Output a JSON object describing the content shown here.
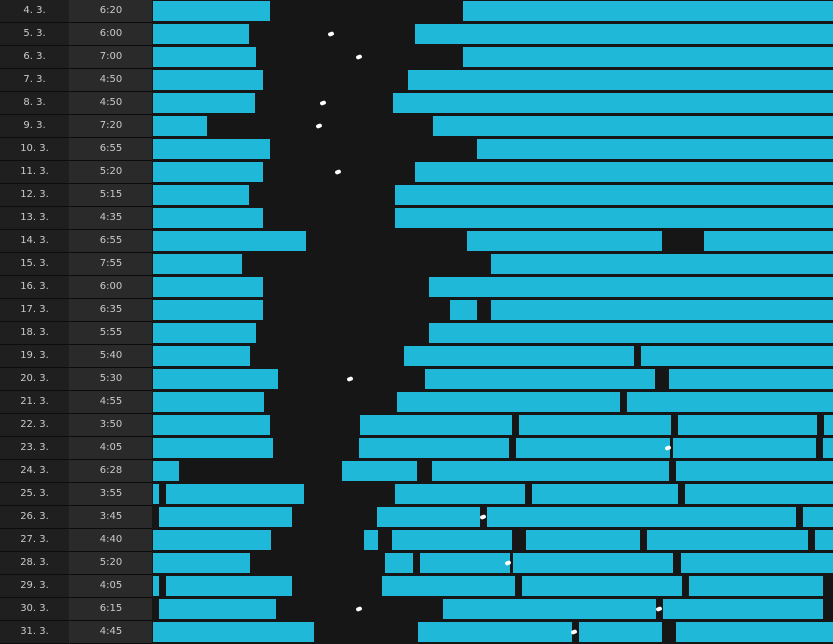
{
  "colors": {
    "background": "#161616",
    "sleep": "#1fb8d9",
    "marker": "#ffffff"
  },
  "rows": [
    {
      "date": "4. 3.",
      "total": "6:20",
      "segments": [
        [
          0,
          117
        ],
        [
          310,
          680
        ]
      ],
      "marks": []
    },
    {
      "date": "5. 3.",
      "total": "6:00",
      "segments": [
        [
          0,
          96
        ],
        [
          262,
          680
        ]
      ],
      "marks": [
        178
      ]
    },
    {
      "date": "6. 3.",
      "total": "7:00",
      "segments": [
        [
          0,
          103
        ],
        [
          310,
          680
        ]
      ],
      "marks": [
        206
      ]
    },
    {
      "date": "7. 3.",
      "total": "4:50",
      "segments": [
        [
          0,
          110
        ],
        [
          255,
          680
        ]
      ],
      "marks": []
    },
    {
      "date": "8. 3.",
      "total": "4:50",
      "segments": [
        [
          0,
          102
        ],
        [
          240,
          680
        ]
      ],
      "marks": [
        170
      ]
    },
    {
      "date": "9. 3.",
      "total": "7:20",
      "segments": [
        [
          0,
          54
        ],
        [
          280,
          680
        ]
      ],
      "marks": [
        166
      ]
    },
    {
      "date": "10. 3.",
      "total": "6:55",
      "segments": [
        [
          0,
          117
        ],
        [
          324,
          680
        ]
      ],
      "marks": []
    },
    {
      "date": "11. 3.",
      "total": "5:20",
      "segments": [
        [
          0,
          110
        ],
        [
          262,
          680
        ]
      ],
      "marks": [
        185
      ]
    },
    {
      "date": "12. 3.",
      "total": "5:15",
      "segments": [
        [
          0,
          96
        ],
        [
          242,
          680
        ]
      ],
      "marks": []
    },
    {
      "date": "13. 3.",
      "total": "4:35",
      "segments": [
        [
          0,
          110
        ],
        [
          242,
          680
        ]
      ],
      "marks": []
    },
    {
      "date": "14. 3.",
      "total": "6:55",
      "segments": [
        [
          0,
          153
        ],
        [
          314,
          509
        ],
        [
          551,
          680
        ]
      ],
      "marks": []
    },
    {
      "date": "15. 3.",
      "total": "7:55",
      "segments": [
        [
          0,
          89
        ],
        [
          338,
          680
        ]
      ],
      "marks": []
    },
    {
      "date": "16. 3.",
      "total": "6:00",
      "segments": [
        [
          0,
          110
        ],
        [
          276,
          680
        ]
      ],
      "marks": []
    },
    {
      "date": "17. 3.",
      "total": "6:35",
      "segments": [
        [
          0,
          110
        ],
        [
          297,
          324
        ],
        [
          338,
          680
        ]
      ],
      "marks": []
    },
    {
      "date": "18. 3.",
      "total": "5:55",
      "segments": [
        [
          0,
          103
        ],
        [
          276,
          680
        ]
      ],
      "marks": []
    },
    {
      "date": "19. 3.",
      "total": "5:40",
      "segments": [
        [
          0,
          97
        ],
        [
          251,
          481
        ],
        [
          488,
          680
        ]
      ],
      "marks": []
    },
    {
      "date": "20. 3.",
      "total": "5:30",
      "segments": [
        [
          0,
          125
        ],
        [
          272,
          502
        ],
        [
          516,
          680
        ]
      ],
      "marks": [
        197
      ]
    },
    {
      "date": "21. 3.",
      "total": "4:55",
      "segments": [
        [
          0,
          111
        ],
        [
          244,
          467
        ],
        [
          474,
          680
        ]
      ],
      "marks": []
    },
    {
      "date": "22. 3.",
      "total": "3:50",
      "segments": [
        [
          0,
          117
        ],
        [
          207,
          359
        ],
        [
          366,
          518
        ],
        [
          525,
          664
        ],
        [
          671,
          680
        ]
      ],
      "marks": []
    },
    {
      "date": "23. 3.",
      "total": "4:05",
      "segments": [
        [
          0,
          120
        ],
        [
          206,
          356
        ],
        [
          363,
          517
        ],
        [
          520,
          663
        ],
        [
          670,
          680
        ]
      ],
      "marks": [
        515
      ]
    },
    {
      "date": "24. 3.",
      "total": "6:28",
      "segments": [
        [
          0,
          26
        ],
        [
          189,
          264
        ],
        [
          279,
          516
        ],
        [
          523,
          680
        ]
      ],
      "marks": []
    },
    {
      "date": "25. 3.",
      "total": "3:55",
      "segments": [
        [
          0,
          6
        ],
        [
          13,
          151
        ],
        [
          242,
          372
        ],
        [
          379,
          525
        ],
        [
          532,
          680
        ]
      ],
      "marks": []
    },
    {
      "date": "26. 3.",
      "total": "3:45",
      "segments": [
        [
          6,
          139
        ],
        [
          224,
          327
        ],
        [
          334,
          643
        ],
        [
          650,
          680
        ]
      ],
      "marks": [
        330
      ]
    },
    {
      "date": "27. 3.",
      "total": "4:40",
      "segments": [
        [
          0,
          118
        ],
        [
          211,
          225
        ],
        [
          239,
          359
        ],
        [
          373,
          487
        ],
        [
          494,
          655
        ],
        [
          662,
          680
        ]
      ],
      "marks": []
    },
    {
      "date": "28. 3.",
      "total": "5:20",
      "segments": [
        [
          0,
          97
        ],
        [
          232,
          260
        ],
        [
          267,
          357
        ],
        [
          360,
          520
        ],
        [
          528,
          680
        ]
      ],
      "marks": [
        355
      ]
    },
    {
      "date": "29. 3.",
      "total": "4:05",
      "segments": [
        [
          0,
          6
        ],
        [
          13,
          139
        ],
        [
          229,
          362
        ],
        [
          369,
          529
        ],
        [
          536,
          670
        ]
      ],
      "marks": []
    },
    {
      "date": "30. 3.",
      "total": "6:15",
      "segments": [
        [
          6,
          123
        ],
        [
          290,
          503
        ],
        [
          510,
          670
        ]
      ],
      "marks": [
        206,
        506
      ]
    },
    {
      "date": "31. 3.",
      "total": "4:45",
      "segments": [
        [
          0,
          161
        ],
        [
          265,
          419
        ],
        [
          426,
          509
        ],
        [
          523,
          680
        ]
      ],
      "marks": [
        421
      ]
    }
  ]
}
